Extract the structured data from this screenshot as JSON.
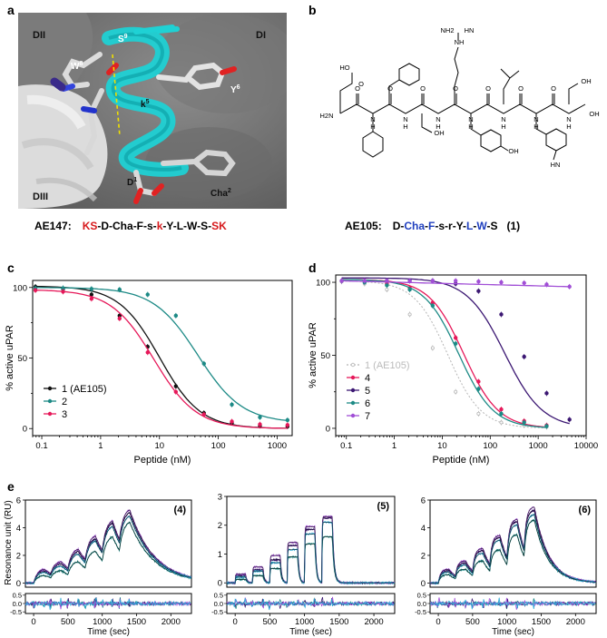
{
  "panels": {
    "a": {
      "letter": "a",
      "domain_labels": [
        "DII",
        "DI",
        "DIII"
      ],
      "residue_labels": [
        {
          "name": "W",
          "sup": "8"
        },
        {
          "name": "S",
          "sup": "9"
        },
        {
          "name": "k",
          "sup": "5"
        },
        {
          "name": "Y",
          "sup": "6"
        },
        {
          "name": "Cha",
          "sup": "2"
        },
        {
          "name": "D",
          "sup": "1"
        }
      ],
      "caption_name": "AE147:",
      "caption_segments": [
        {
          "text": "KS",
          "color": "#d7191c"
        },
        {
          "text": "-D-Cha-F-s-",
          "color": "#000000"
        },
        {
          "text": "k",
          "color": "#d7191c"
        },
        {
          "text": "-Y-L-W-S-",
          "color": "#000000"
        },
        {
          "text": "SK",
          "color": "#d7191c"
        }
      ]
    },
    "b": {
      "letter": "b",
      "structure_labels": [
        "HO",
        "O",
        "H2N",
        "N",
        "H",
        "OH",
        "HN",
        "NH",
        "NH2"
      ],
      "caption_name": "AE105:",
      "caption_segments": [
        {
          "text": "D-",
          "color": "#000000"
        },
        {
          "text": "Cha",
          "color": "#1f3fbf"
        },
        {
          "text": "-",
          "color": "#000000"
        },
        {
          "text": "F",
          "color": "#1f3fbf"
        },
        {
          "text": "-s-r-Y-",
          "color": "#000000"
        },
        {
          "text": "L",
          "color": "#1f3fbf"
        },
        {
          "text": "-",
          "color": "#000000"
        },
        {
          "text": "W",
          "color": "#1f3fbf"
        },
        {
          "text": "-S",
          "color": "#000000"
        }
      ],
      "caption_number": "(1)"
    },
    "c": {
      "letter": "c"
    },
    "d": {
      "letter": "d"
    },
    "e": {
      "letter": "e"
    }
  },
  "chart_data": [
    {
      "id": "c",
      "type": "line",
      "xlabel": "Peptide (nM)",
      "ylabel": "% active uPAR",
      "xscale": "log",
      "xlim": [
        0.07,
        1800
      ],
      "ylim": [
        -5,
        105
      ],
      "xticks": [
        0.1,
        1,
        10,
        100,
        1000
      ],
      "xtick_labels": [
        "0.1",
        "1",
        "10",
        "100",
        "1000"
      ],
      "yticks": [
        0,
        50,
        100
      ],
      "legend_position": "bottom-left",
      "series": [
        {
          "name": "1 (AE105)",
          "color": "#111111",
          "ic50": 10,
          "hill": 1.25,
          "top": 101,
          "bottom": 0,
          "x": [
            0.078,
            0.23,
            0.7,
            2.1,
            6.3,
            19,
            57,
            170,
            510,
            1500
          ],
          "y": [
            100.5,
            99,
            95,
            80,
            58,
            30,
            11,
            4,
            2,
            1.5
          ]
        },
        {
          "name": "2",
          "color": "#1d8a86",
          "ic50": 45,
          "hill": 1.15,
          "top": 100,
          "bottom": 4,
          "x": [
            0.078,
            0.23,
            0.7,
            2.1,
            6.3,
            19,
            57,
            170,
            510,
            1500
          ],
          "y": [
            99.5,
            99.5,
            99,
            98.5,
            95,
            80,
            46,
            17,
            8,
            6
          ]
        },
        {
          "name": "3",
          "color": "#e6195a",
          "ic50": 8,
          "hill": 1.2,
          "top": 98.5,
          "bottom": 0,
          "x": [
            0.078,
            0.23,
            0.7,
            2.1,
            6.3,
            19,
            57,
            170,
            510,
            1500
          ],
          "y": [
            98,
            97,
            92,
            78,
            54,
            26,
            10,
            5,
            3,
            2.5
          ]
        }
      ]
    },
    {
      "id": "d",
      "type": "line",
      "xlabel": "Peptide (nM)",
      "ylabel": "% active uPAR",
      "xscale": "log",
      "xlim": [
        0.06,
        10000
      ],
      "ylim": [
        -5,
        105
      ],
      "xticks": [
        0.1,
        1,
        10,
        100,
        1000,
        10000
      ],
      "xtick_labels": [
        "0.1",
        "1",
        "10",
        "100",
        "1000",
        "10000"
      ],
      "yticks": [
        0,
        50,
        100
      ],
      "legend_position": "bottom-left",
      "series": [
        {
          "name": "1 (AE105)",
          "color": "#b5b5b5",
          "dashed": true,
          "ic50": 13,
          "hill": 1.25,
          "top": 101,
          "bottom": 0,
          "x": [
            0.08,
            0.24,
            0.7,
            2.1,
            6.3,
            19,
            57,
            170,
            510,
            1500
          ],
          "y": [
            100.5,
            99,
            95,
            78,
            55,
            25,
            10,
            4,
            2,
            1
          ]
        },
        {
          "name": "4",
          "color": "#e6195a",
          "ic50": 28,
          "hill": 1.2,
          "top": 102,
          "bottom": 0,
          "x": [
            0.08,
            0.24,
            0.7,
            2.1,
            6.3,
            19,
            57,
            170,
            510,
            1500
          ],
          "y": [
            101,
            101,
            99,
            96,
            86,
            62,
            32,
            13,
            5,
            2
          ]
        },
        {
          "name": "5",
          "color": "#3c1873",
          "ic50": 200,
          "hill": 1.1,
          "top": 103,
          "bottom": 0,
          "x": [
            0.08,
            0.24,
            0.7,
            2.1,
            6.3,
            19,
            57,
            170,
            510,
            1500,
            4500
          ],
          "y": [
            101,
            101,
            101,
            101,
            101,
            99,
            94,
            78,
            49,
            24,
            6
          ]
        },
        {
          "name": "6",
          "color": "#1d8a86",
          "ic50": 22,
          "hill": 1.2,
          "top": 102,
          "bottom": 0,
          "x": [
            0.08,
            0.24,
            0.7,
            2.1,
            6.3,
            19,
            57,
            170,
            510,
            1500
          ],
          "y": [
            101,
            100,
            98,
            95,
            84,
            58,
            27,
            10,
            4,
            1.5
          ]
        },
        {
          "name": "7",
          "color": "#a14fd6",
          "ic50": null,
          "top": 101,
          "bottom": 97,
          "x": [
            0.08,
            0.24,
            0.7,
            2.1,
            6.3,
            19,
            57,
            170,
            510,
            1500,
            4500
          ],
          "y": [
            101,
            101,
            101,
            101,
            101,
            101,
            100.5,
            100,
            99.5,
            98.5,
            97
          ]
        }
      ]
    },
    {
      "id": "e",
      "type": "line",
      "subtype": "surface-plasmon-resonance sensorgrams",
      "ylabel": "Resonance unit (RU)",
      "xlabel": "Time (sec)",
      "plots": [
        {
          "label": "(4)",
          "ylim": [
            -0.3,
            6
          ],
          "yticks": [
            0,
            2,
            4,
            6
          ],
          "xlim": [
            -120,
            2300
          ],
          "xticks": [
            0,
            500,
            1000,
            1500,
            2000
          ],
          "injections": [
            0,
            250,
            500,
            750,
            1000,
            1250
          ],
          "contact_time": 150,
          "kinetics": "slow",
          "series_plateaus": [
            [
              0.55,
              0.9,
              1.55,
              2.3,
              3.35,
              4.4
            ],
            [
              0.9,
              1.4,
              2.3,
              3.2,
              4.35,
              5.1
            ],
            [
              1.0,
              1.55,
              2.45,
              3.4,
              4.5,
              5.3
            ],
            [
              0.8,
              1.25,
              2.1,
              3.05,
              4.1,
              4.85
            ]
          ],
          "residual_ylim": [
            -0.5,
            0.5
          ],
          "residual_yticks": [
            "0.5",
            "0.0",
            "-0.5"
          ]
        },
        {
          "label": "(5)",
          "ylim": [
            -0.15,
            3
          ],
          "yticks": [
            0,
            1,
            2,
            3
          ],
          "xlim": [
            -120,
            2300
          ],
          "xticks": [
            0,
            500,
            1000,
            1500,
            2000
          ],
          "injections": [
            0,
            250,
            500,
            750,
            1000,
            1250
          ],
          "contact_time": 150,
          "kinetics": "fast",
          "series_plateaus": [
            [
              0.12,
              0.25,
              0.5,
              0.9,
              1.35,
              1.6
            ],
            [
              0.25,
              0.45,
              0.8,
              1.3,
              1.85,
              2.25
            ],
            [
              0.3,
              0.55,
              0.95,
              1.4,
              1.95,
              2.3
            ],
            [
              0.2,
              0.4,
              0.7,
              1.15,
              1.7,
              2.1
            ]
          ],
          "residual_ylim": [
            -0.5,
            0.5
          ],
          "residual_yticks": [
            "0.5",
            "0.0",
            "-0.5"
          ]
        },
        {
          "label": "(6)",
          "ylim": [
            -0.3,
            6
          ],
          "yticks": [
            0,
            2,
            4,
            6
          ],
          "xlim": [
            -120,
            2300
          ],
          "xticks": [
            0,
            500,
            1000,
            1500,
            2000
          ],
          "injections": [
            0,
            250,
            500,
            750,
            1000,
            1250
          ],
          "contact_time": 150,
          "kinetics": "medium",
          "series_plateaus": [
            [
              0.6,
              1.0,
              1.6,
              2.4,
              3.5,
              4.55
            ],
            [
              0.9,
              1.45,
              2.35,
              3.3,
              4.45,
              5.25
            ],
            [
              1.0,
              1.6,
              2.5,
              3.45,
              4.6,
              5.5
            ],
            [
              0.8,
              1.3,
              2.15,
              3.1,
              4.2,
              4.95
            ]
          ],
          "residual_ylim": [
            -0.5,
            0.5
          ],
          "residual_yticks": [
            "0.5",
            "0.0",
            "-0.5"
          ]
        }
      ],
      "trace_colors": [
        "#1d8a86",
        "#3c1873",
        "#a14fd6",
        "#2aa9d6"
      ],
      "fit_color": "#000000"
    }
  ]
}
